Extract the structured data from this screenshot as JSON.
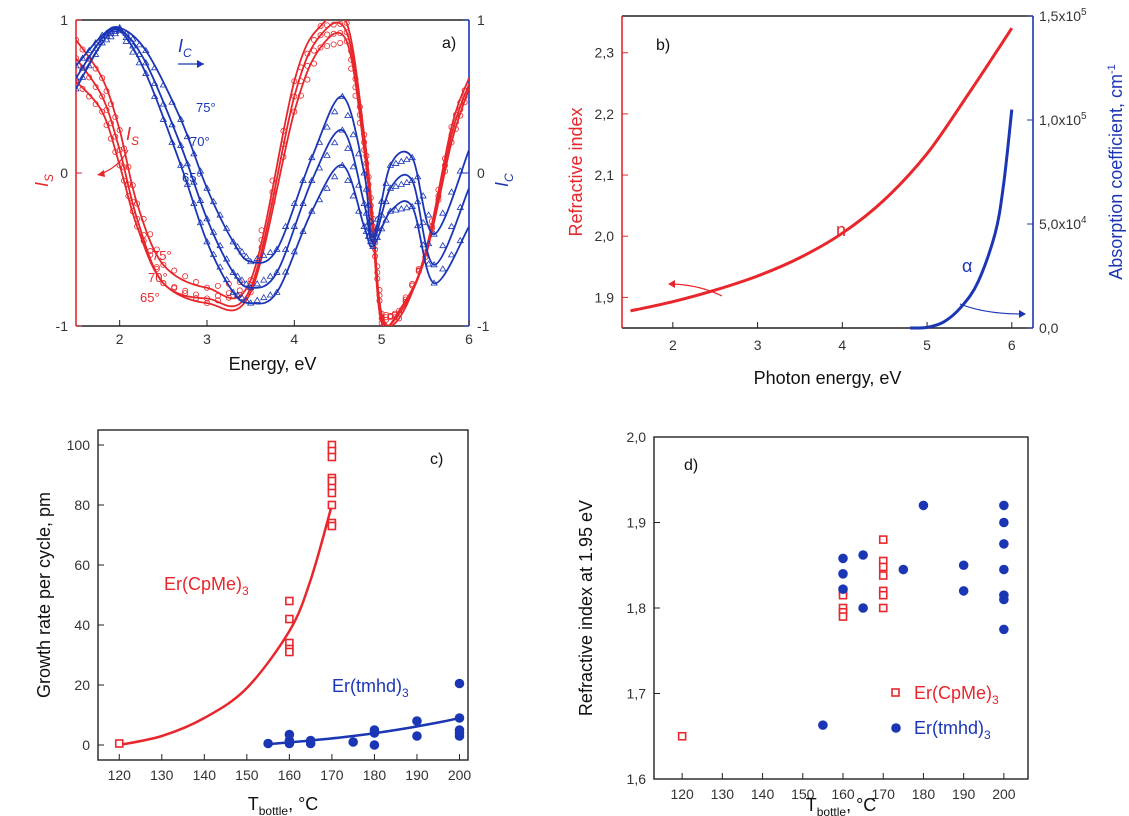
{
  "colors": {
    "red": "#e8262b",
    "blue": "#1b36b5",
    "axis": "#222222"
  },
  "chart_data": [
    {
      "type": "line",
      "panel_label": "a)",
      "xlabel": "Energy, eV",
      "ylabel_left": "I",
      "ylabel_left_sub": "S",
      "ylabel_right": "I",
      "ylabel_right_sub": "C",
      "xlim": [
        1.5,
        6
      ],
      "ylim": [
        -1,
        1
      ],
      "xticks": [
        "2",
        "3",
        "4",
        "5",
        "6"
      ],
      "yticks_left": [
        "-1",
        "0",
        "1"
      ],
      "yticks_right": [
        "-1",
        "0",
        "1"
      ],
      "annotations": {
        "is": "I",
        "is_sub": "S",
        "ic": "I",
        "ic_sub": "C",
        "a75": "75°",
        "a70": "70°",
        "a65": "65°",
        "b75": "75°",
        "b70": "70°",
        "b65": "65°"
      },
      "series": [
        {
          "group": "IS",
          "angle": "65°",
          "x": [
            1.5,
            1.8,
            2.0,
            2.2,
            2.5,
            3.0,
            3.5,
            4.0,
            4.3,
            4.6,
            4.8,
            4.9,
            5.0,
            5.2,
            5.5,
            5.8,
            6.0
          ],
          "y": [
            0.6,
            0.4,
            0.05,
            -0.35,
            -0.72,
            -0.85,
            -0.78,
            0.4,
            0.82,
            0.86,
            0.15,
            -0.4,
            -0.98,
            -0.9,
            -0.55,
            0.2,
            0.55
          ]
        },
        {
          "group": "IS",
          "angle": "70°",
          "x": [
            1.5,
            1.8,
            2.0,
            2.2,
            2.5,
            3.0,
            3.5,
            4.0,
            4.3,
            4.6,
            4.8,
            4.9,
            5.0,
            5.2,
            5.5,
            5.8,
            6.0
          ],
          "y": [
            0.75,
            0.5,
            0.15,
            -0.3,
            -0.72,
            -0.82,
            -0.75,
            0.5,
            0.9,
            0.92,
            0.2,
            -0.35,
            -0.95,
            -0.92,
            -0.55,
            0.25,
            0.58
          ]
        },
        {
          "group": "IS",
          "angle": "75°",
          "x": [
            1.5,
            1.8,
            2.0,
            2.2,
            2.5,
            3.0,
            3.5,
            4.0,
            4.3,
            4.6,
            4.8,
            4.9,
            5.0,
            5.2,
            5.5,
            5.8,
            6.0
          ],
          "y": [
            0.87,
            0.62,
            0.28,
            -0.2,
            -0.6,
            -0.75,
            -0.7,
            0.6,
            0.96,
            0.98,
            0.25,
            -0.3,
            -0.92,
            -0.95,
            -0.52,
            0.3,
            0.62
          ]
        },
        {
          "group": "IC",
          "angle": "75°",
          "x": [
            1.5,
            1.8,
            2.0,
            2.3,
            2.7,
            3.0,
            3.3,
            3.5,
            3.8,
            4.2,
            4.55,
            4.8,
            4.9,
            5.1,
            5.35,
            5.6,
            6.0
          ],
          "y": [
            0.7,
            0.9,
            0.95,
            0.8,
            0.35,
            -0.1,
            -0.45,
            -0.58,
            -0.5,
            0.1,
            0.5,
            0.0,
            -0.42,
            0.05,
            0.1,
            -0.4,
            0.15
          ]
        },
        {
          "group": "IC",
          "angle": "70°",
          "x": [
            1.5,
            1.8,
            2.0,
            2.3,
            2.7,
            3.0,
            3.3,
            3.5,
            3.8,
            4.2,
            4.55,
            4.8,
            4.9,
            5.1,
            5.35,
            5.6,
            6.0
          ],
          "y": [
            0.62,
            0.88,
            0.94,
            0.72,
            0.18,
            -0.3,
            -0.65,
            -0.75,
            -0.65,
            -0.05,
            0.28,
            -0.2,
            -0.45,
            -0.1,
            -0.05,
            -0.6,
            -0.1
          ]
        },
        {
          "group": "IC",
          "angle": "65°",
          "x": [
            1.5,
            1.8,
            2.0,
            2.3,
            2.7,
            3.0,
            3.3,
            3.5,
            3.8,
            4.2,
            4.55,
            4.8,
            4.9,
            5.1,
            5.35,
            5.6,
            6.0
          ],
          "y": [
            0.55,
            0.85,
            0.93,
            0.65,
            0.05,
            -0.45,
            -0.78,
            -0.85,
            -0.78,
            -0.25,
            0.05,
            -0.35,
            -0.48,
            -0.25,
            -0.22,
            -0.72,
            -0.35
          ]
        }
      ]
    },
    {
      "type": "line",
      "panel_label": "b)",
      "xlabel": "Photon energy, eV",
      "ylabel_left": "Refractive index",
      "ylabel_right": "Absorption coefficient, cm",
      "ylabel_right_sup": "-1",
      "xlim": [
        1.4,
        6.25
      ],
      "ylim_left": [
        1.85,
        2.36
      ],
      "ylim_right": [
        0,
        150000
      ],
      "xticks": [
        "2",
        "3",
        "4",
        "5",
        "6"
      ],
      "yticks_left": [
        "1,9",
        "2,0",
        "2,1",
        "2,2",
        "2,3"
      ],
      "yticks_right": [
        {
          "base": "0,0",
          "exp": ""
        },
        {
          "base": "5,0x10",
          "exp": "4"
        },
        {
          "base": "1,0x10",
          "exp": "5"
        },
        {
          "base": "1,5x10",
          "exp": "5"
        }
      ],
      "annotations": {
        "n": "n",
        "alpha": "α"
      },
      "series": [
        {
          "name": "n",
          "x": [
            1.5,
            2.0,
            2.5,
            3.0,
            3.5,
            4.0,
            4.5,
            5.0,
            5.5,
            6.0
          ],
          "y": [
            1.878,
            1.893,
            1.912,
            1.935,
            1.965,
            2.005,
            2.06,
            2.135,
            2.235,
            2.34
          ]
        },
        {
          "name": "α",
          "x": [
            4.8,
            5.0,
            5.2,
            5.4,
            5.6,
            5.8,
            5.9,
            6.0
          ],
          "y": [
            0,
            300,
            3000,
            10000,
            22000,
            45000,
            68000,
            105000
          ]
        }
      ]
    },
    {
      "type": "scatter",
      "panel_label": "c)",
      "xlabel": "T",
      "xlabel_sub": "bottle",
      "xlabel_tail": ", °C",
      "ylabel": "Growth rate per cycle, pm",
      "xlim": [
        115,
        202
      ],
      "ylim": [
        -5,
        105
      ],
      "xticks": [
        "120",
        "130",
        "140",
        "150",
        "160",
        "170",
        "180",
        "190",
        "200"
      ],
      "yticks": [
        "0",
        "20",
        "40",
        "60",
        "80",
        "100"
      ],
      "annotations": {
        "red": "Er(CpMe)",
        "red_sub": "3",
        "blue": "Er(tmhd)",
        "blue_sub": "3"
      },
      "series": [
        {
          "name": "Er(CpMe)3",
          "x": [
            120,
            160,
            160,
            160,
            160,
            160,
            170,
            170,
            170,
            170,
            170,
            170,
            170,
            170,
            170,
            170
          ],
          "y": [
            0.5,
            48,
            42,
            34,
            32,
            31,
            100,
            98,
            96,
            89,
            86,
            84,
            80,
            74,
            73,
            88
          ]
        },
        {
          "name": "Er(tmhd)3",
          "x": [
            155,
            160,
            160,
            160,
            165,
            165,
            175,
            180,
            180,
            180,
            190,
            190,
            200,
            200,
            200,
            200,
            200
          ],
          "y": [
            0.5,
            0.5,
            1.5,
            3.5,
            0.5,
            1.5,
            1,
            0,
            4,
            5,
            3,
            8,
            3,
            4,
            5,
            9,
            20.5
          ]
        }
      ],
      "fits": [
        {
          "x": [
            120,
            130,
            140,
            150,
            160,
            165,
            170
          ],
          "y": [
            0,
            3,
            9,
            19,
            38,
            55,
            80
          ]
        },
        {
          "x": [
            155,
            165,
            175,
            185,
            195,
            200
          ],
          "y": [
            0.3,
            1.5,
            3,
            5,
            7.5,
            9
          ]
        }
      ]
    },
    {
      "type": "scatter",
      "panel_label": "d)",
      "xlabel": "T",
      "xlabel_sub": "bottle",
      "xlabel_tail": ", °C",
      "ylabel": "Refractive index at 1.95 eV",
      "xlim": [
        113,
        206
      ],
      "ylim": [
        1.6,
        2.0
      ],
      "xticks": [
        "120",
        "130",
        "140",
        "150",
        "160",
        "170",
        "180",
        "190",
        "200"
      ],
      "yticks": [
        "1,6",
        "1,7",
        "1,8",
        "1,9",
        "2,0"
      ],
      "legend": [
        {
          "label": "Er(CpMe)",
          "sub": "3"
        },
        {
          "label": "Er(tmhd)",
          "sub": "3"
        }
      ],
      "series": [
        {
          "name": "Er(CpMe)3",
          "x": [
            120,
            160,
            160,
            160,
            160,
            160,
            170,
            170,
            170,
            170,
            170,
            170,
            170
          ],
          "y": [
            1.65,
            1.82,
            1.815,
            1.8,
            1.795,
            1.79,
            1.88,
            1.855,
            1.848,
            1.838,
            1.82,
            1.815,
            1.8
          ]
        },
        {
          "name": "Er(tmhd)3",
          "x": [
            155,
            160,
            160,
            160,
            165,
            165,
            175,
            180,
            190,
            190,
            200,
            200,
            200,
            200,
            200,
            200,
            200
          ],
          "y": [
            1.663,
            1.858,
            1.84,
            1.822,
            1.862,
            1.8,
            1.845,
            1.92,
            1.85,
            1.82,
            1.92,
            1.9,
            1.875,
            1.845,
            1.815,
            1.81,
            1.775
          ]
        }
      ]
    }
  ]
}
